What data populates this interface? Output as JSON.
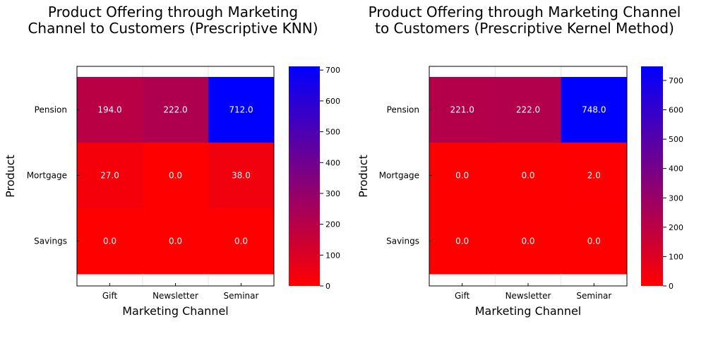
{
  "chart_data": [
    {
      "type": "heatmap",
      "title": "Product Offering through Marketing\nChannel to Customers (Prescriptive KNN)",
      "xlabel": "Marketing Channel",
      "ylabel": "Product",
      "x_categories": [
        "Gift",
        "Newsletter",
        "Seminar"
      ],
      "y_categories": [
        "Pension",
        "Mortgage",
        "Savings"
      ],
      "values": [
        [
          194.0,
          222.0,
          712.0
        ],
        [
          27.0,
          0.0,
          38.0
        ],
        [
          0.0,
          0.0,
          0.0
        ]
      ],
      "cell_labels": [
        [
          "194.0",
          "222.0",
          "712.0"
        ],
        [
          "27.0",
          "0.0",
          "38.0"
        ],
        [
          "0.0",
          "0.0",
          "0.0"
        ]
      ],
      "colorbar": {
        "range": [
          0,
          712
        ],
        "ticks": [
          0,
          100,
          200,
          300,
          400,
          500,
          600,
          700
        ],
        "tick_labels": [
          "0",
          "100",
          "200",
          "300",
          "400",
          "500",
          "600",
          "700"
        ],
        "color_low": "#ff0000",
        "color_high": "#0000ff"
      },
      "cell_text_color": "#ffffff"
    },
    {
      "type": "heatmap",
      "title": "Product Offering through Marketing  Channel\nto Customers (Prescriptive Kernel Method)",
      "xlabel": "Marketing Channel",
      "ylabel": "Product",
      "x_categories": [
        "Gift",
        "Newsletter",
        "Seminar"
      ],
      "y_categories": [
        "Pension",
        "Mortgage",
        "Savings"
      ],
      "values": [
        [
          221.0,
          222.0,
          748.0
        ],
        [
          0.0,
          0.0,
          2.0
        ],
        [
          0.0,
          0.0,
          0.0
        ]
      ],
      "cell_labels": [
        [
          "221.0",
          "222.0",
          "748.0"
        ],
        [
          "0.0",
          "0.0",
          "2.0"
        ],
        [
          "0.0",
          "0.0",
          "0.0"
        ]
      ],
      "colorbar": {
        "range": [
          0,
          748
        ],
        "ticks": [
          0,
          100,
          200,
          300,
          400,
          500,
          600,
          700
        ],
        "tick_labels": [
          "0",
          "100",
          "200",
          "300",
          "400",
          "500",
          "600",
          "700"
        ],
        "color_low": "#ff0000",
        "color_high": "#0000ff"
      },
      "cell_text_color": "#ffffff"
    }
  ]
}
